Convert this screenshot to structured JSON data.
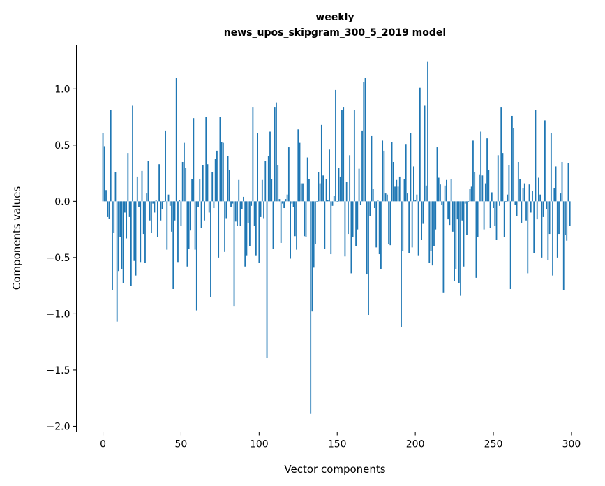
{
  "chart_data": {
    "type": "bar",
    "title_lines": [
      "weekly",
      "news_upos_skipgram_300_5_2019 model"
    ],
    "xlabel": "Vector components",
    "ylabel": "Components values",
    "xlim": [
      -17,
      315
    ],
    "ylim": [
      -2.05,
      1.39
    ],
    "xticks": [
      0,
      50,
      100,
      150,
      200,
      250,
      300
    ],
    "xtick_labels": [
      "0",
      "50",
      "100",
      "150",
      "200",
      "250",
      "300"
    ],
    "yticks": [
      -2.0,
      -1.5,
      -1.0,
      -0.5,
      0.0,
      0.5,
      1.0
    ],
    "ytick_labels": [
      "−2.0",
      "−1.5",
      "−1.0",
      "−0.5",
      "0.0",
      "0.5",
      "1.0"
    ],
    "grid": false,
    "bar_color": "#1f77b4",
    "values": [
      0.61,
      0.49,
      0.1,
      -0.14,
      -0.155,
      0.81,
      -0.79,
      -0.28,
      0.26,
      -1.07,
      -0.62,
      -0.32,
      -0.6,
      -0.73,
      -0.1,
      -0.33,
      0.43,
      -0.14,
      -0.75,
      0.85,
      -0.53,
      -0.66,
      0.22,
      -0.05,
      -0.54,
      0.27,
      -0.29,
      -0.55,
      0.07,
      0.36,
      -0.17,
      -0.28,
      -0.02,
      -0.1,
      0.01,
      -0.32,
      0.33,
      -0.17,
      -0.07,
      -0.01,
      0.63,
      -0.43,
      0.06,
      -0.04,
      -0.27,
      -0.78,
      -0.17,
      1.1,
      -0.54,
      0.01,
      -0.22,
      0.35,
      0.52,
      0.3,
      -0.58,
      -0.42,
      -0.26,
      0.2,
      0.74,
      -0.43,
      -0.97,
      -0.05,
      0.2,
      -0.24,
      0.32,
      -0.17,
      0.75,
      0.33,
      -0.1,
      -0.85,
      0.26,
      -0.06,
      0.38,
      0.45,
      -0.5,
      0.75,
      0.53,
      0.52,
      -0.45,
      -0.15,
      0.4,
      0.28,
      -0.05,
      -0.02,
      -0.93,
      -0.18,
      -0.22,
      0.19,
      -0.22,
      -0.07,
      0.04,
      -0.58,
      -0.48,
      -0.19,
      -0.4,
      -0.04,
      0.84,
      -0.22,
      -0.48,
      0.61,
      -0.55,
      -0.14,
      0.19,
      -0.15,
      0.36,
      -1.39,
      0.4,
      0.62,
      0.2,
      -0.42,
      0.84,
      0.88,
      0.32,
      0.02,
      -0.37,
      -0.02,
      -0.06,
      0.02,
      0.06,
      0.48,
      -0.51,
      -0.02,
      -0.05,
      -0.31,
      -0.43,
      0.64,
      0.52,
      0.16,
      0.16,
      -0.31,
      -0.32,
      0.39,
      0.2,
      -1.89,
      -0.98,
      -0.59,
      -0.38,
      -0.01,
      0.26,
      0.16,
      0.68,
      0.23,
      -0.42,
      0.2,
      0.01,
      0.46,
      -0.47,
      -0.04,
      0.05,
      0.99,
      -0.01,
      0.3,
      0.22,
      0.81,
      0.84,
      -0.49,
      0.17,
      -0.29,
      0.41,
      -0.64,
      -0.32,
      0.81,
      -0.4,
      -0.25,
      0.29,
      -0.03,
      0.63,
      1.06,
      1.1,
      -0.65,
      -1.01,
      -0.13,
      0.58,
      0.11,
      -0.06,
      -0.41,
      0.01,
      -0.47,
      -0.6,
      0.54,
      0.45,
      0.07,
      0.06,
      -0.38,
      -0.39,
      0.53,
      0.35,
      0.13,
      0.19,
      0.13,
      0.22,
      -1.12,
      -0.44,
      0.2,
      0.51,
      0.07,
      -0.46,
      0.61,
      -0.41,
      0.31,
      0.01,
      0.06,
      -0.48,
      1.01,
      -0.34,
      -0.2,
      0.85,
      0.14,
      1.24,
      -0.55,
      -0.44,
      -0.57,
      -0.4,
      -0.25,
      0.48,
      0.21,
      0.15,
      -0.03,
      -0.81,
      0.14,
      0.19,
      -0.16,
      -0.21,
      0.2,
      -0.27,
      -0.71,
      -0.6,
      -0.16,
      -0.73,
      -0.84,
      -0.17,
      -0.58,
      -0.02,
      -0.3,
      -0.01,
      0.11,
      0.13,
      0.54,
      0.26,
      -0.68,
      -0.32,
      0.24,
      0.62,
      0.23,
      -0.25,
      0.16,
      0.56,
      0.28,
      -0.24,
      0.08,
      -0.06,
      -0.22,
      -0.34,
      0.41,
      -0.04,
      0.84,
      0.43,
      -0.32,
      -0.01,
      0.06,
      0.32,
      -0.78,
      0.76,
      0.65,
      -0.03,
      -0.13,
      0.35,
      0.2,
      -0.19,
      0.12,
      0.16,
      -0.17,
      -0.64,
      0.15,
      -0.1,
      0.09,
      -0.46,
      0.81,
      -0.16,
      0.21,
      0.06,
      -0.5,
      -0.14,
      0.72,
      -0.07,
      -0.52,
      -0.29,
      0.61,
      -0.66,
      0.12,
      0.31,
      -0.5,
      -0.29,
      0.07,
      0.35,
      -0.79,
      -0.3,
      -0.35,
      0.34,
      -0.22
    ]
  }
}
